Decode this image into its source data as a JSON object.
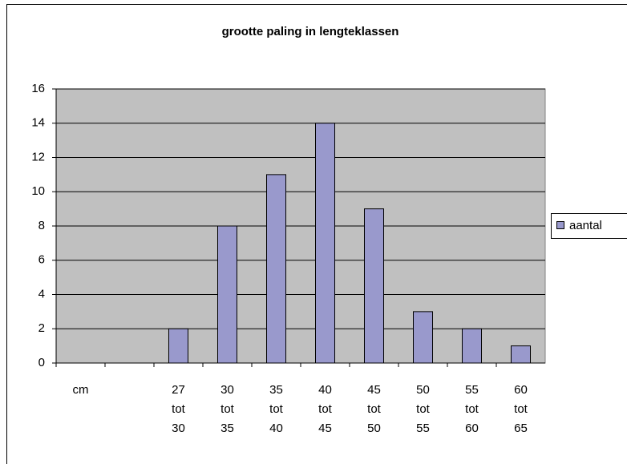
{
  "chart_data": {
    "type": "bar",
    "title": "grootte paling in lengteklassen",
    "categories": [
      "cm",
      null,
      "27 tot 30",
      "30 tot 35",
      "35 tot 40",
      "40 tot 45",
      "45 tot 50",
      "50 tot 55",
      "55 tot 60",
      "60 tot 65"
    ],
    "series": [
      {
        "name": "aantal",
        "color": "#9999cc",
        "values": [
          null,
          null,
          2,
          8,
          11,
          14,
          9,
          3,
          2,
          1
        ]
      }
    ],
    "ylim": [
      0,
      16
    ],
    "yticks": [
      0,
      2,
      4,
      6,
      8,
      10,
      12,
      14,
      16
    ],
    "grid": true,
    "legend": "right"
  }
}
